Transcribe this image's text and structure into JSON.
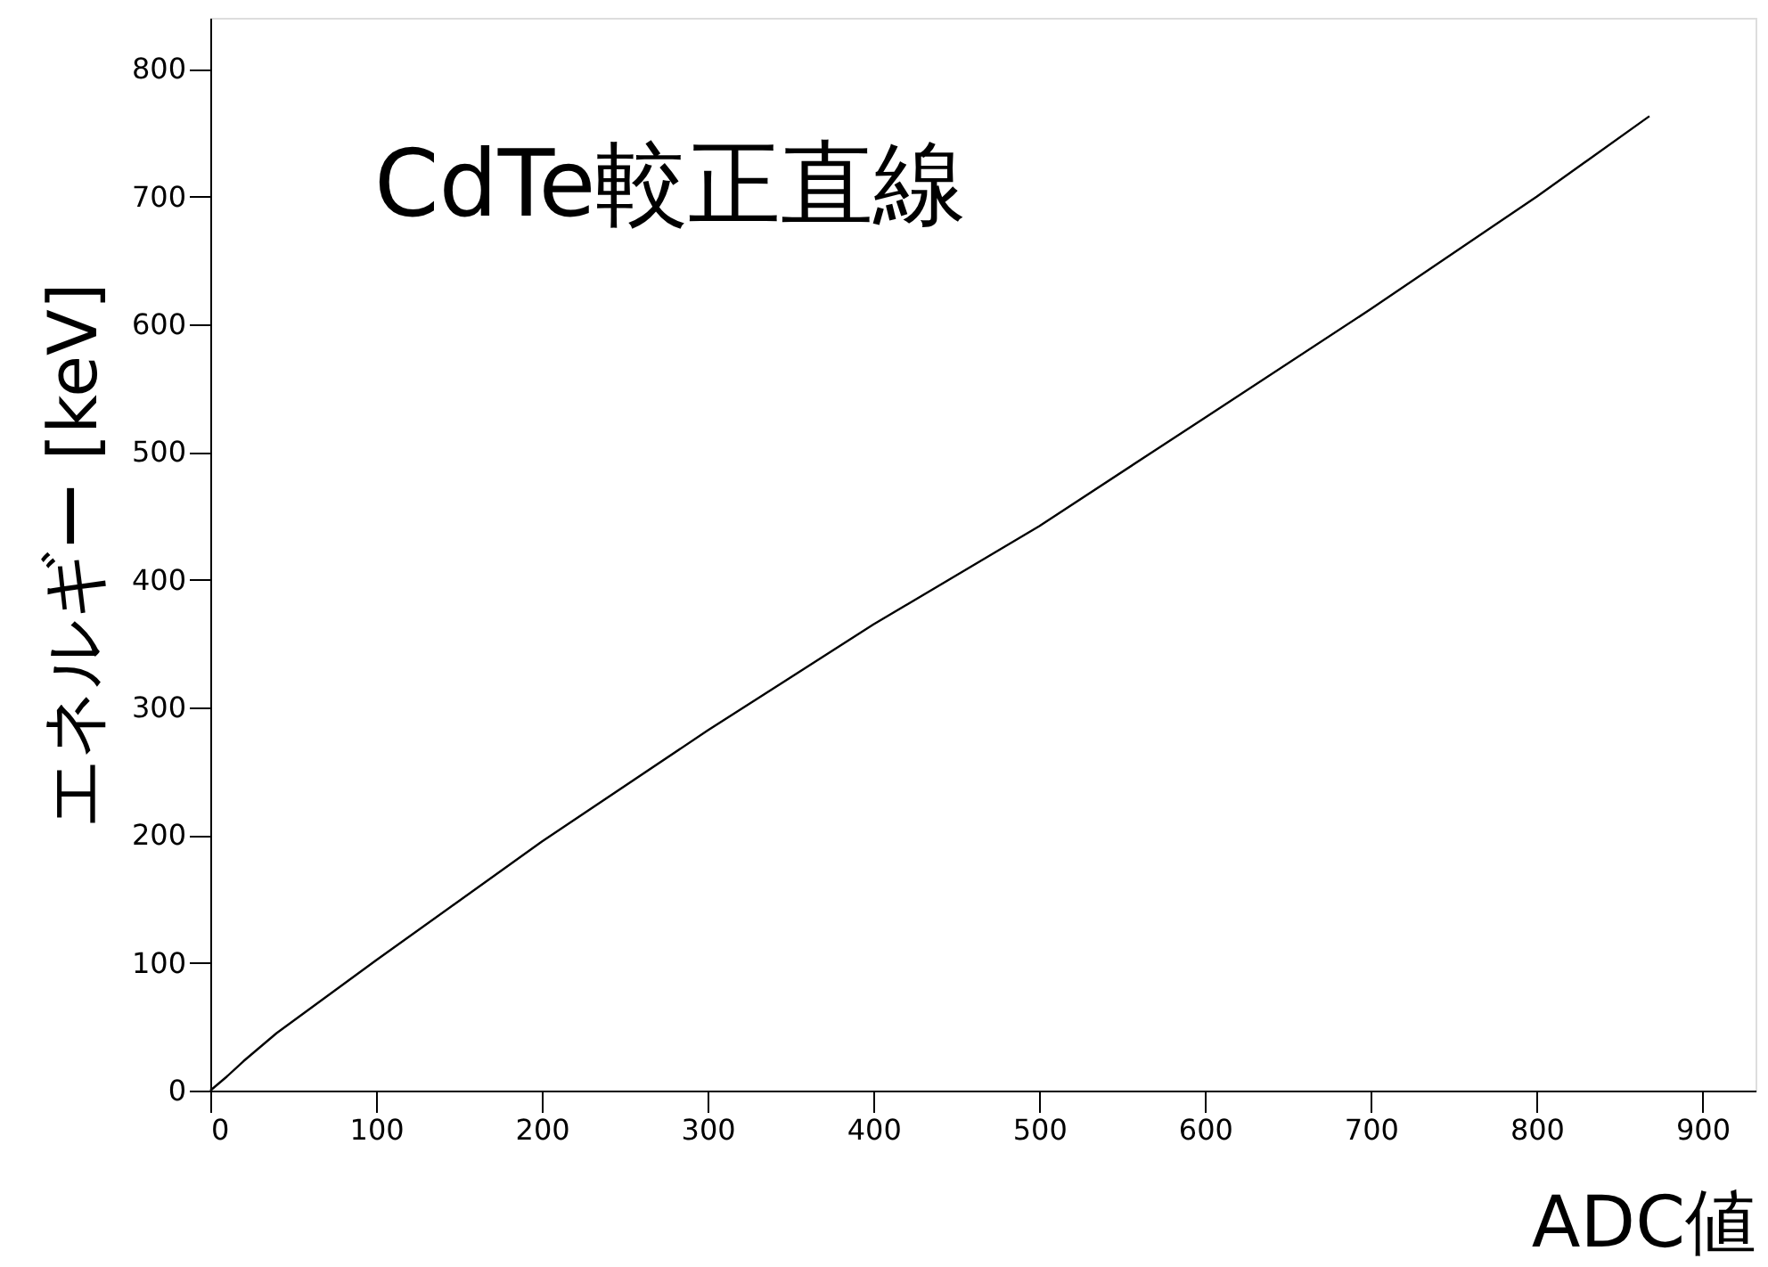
{
  "chart_data": {
    "type": "line",
    "title": "CdTe較正直線",
    "xlabel": "ADC値",
    "ylabel": "エネルギー [keV]",
    "x": [
      0,
      10,
      20,
      40,
      100,
      200,
      300,
      400,
      500,
      600,
      700,
      800,
      868
    ],
    "series": [
      {
        "color": "#000000",
        "values": [
          0,
          11,
          23,
          45,
          102,
          195,
          282,
          365,
          442,
          527,
          612,
          700,
          763
        ]
      }
    ],
    "xlim": [
      0,
      932
    ],
    "ylim": [
      0,
      840
    ],
    "xticks": [
      0,
      100,
      200,
      300,
      400,
      500,
      600,
      700,
      800,
      900
    ],
    "yticks": [
      0,
      100,
      200,
      300,
      400,
      500,
      600,
      700,
      800
    ],
    "grid": false,
    "marker": "none",
    "line_style": "solid"
  }
}
